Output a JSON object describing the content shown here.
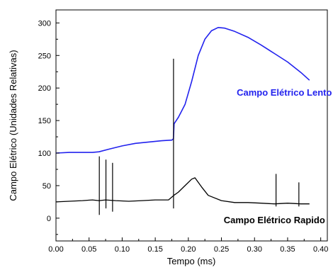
{
  "chart_data": {
    "type": "line",
    "xlabel": "Tempo (ms)",
    "ylabel": "Campo Elétrico (Unidades Relativas)",
    "xlim": [
      0.0,
      0.41
    ],
    "ylim": [
      -35,
      320
    ],
    "xticks": [
      0.0,
      0.05,
      0.1,
      0.15,
      0.2,
      0.25,
      0.3,
      0.35,
      0.4
    ],
    "xtick_labels": [
      "0.00",
      "0.05",
      "0.10",
      "0.15",
      "0.20",
      "0.25",
      "0.30",
      "0.35",
      "0.40"
    ],
    "yticks": [
      0,
      50,
      100,
      150,
      200,
      250,
      300
    ],
    "ytick_labels": [
      "0",
      "50",
      "100",
      "150",
      "200",
      "250",
      "300"
    ],
    "grid": false,
    "series": [
      {
        "name": "Campo Elétrico Lento",
        "color": "#2222ee",
        "x": [
          0.0,
          0.02,
          0.04,
          0.055,
          0.065,
          0.08,
          0.1,
          0.12,
          0.14,
          0.16,
          0.175,
          0.1775,
          0.1785,
          0.185,
          0.195,
          0.205,
          0.215,
          0.225,
          0.235,
          0.245,
          0.255,
          0.27,
          0.29,
          0.31,
          0.33,
          0.35,
          0.37,
          0.383
        ],
        "y": [
          100,
          101,
          101,
          101,
          102,
          106,
          111,
          115,
          117,
          119,
          120,
          122,
          145,
          155,
          175,
          210,
          250,
          275,
          288,
          293,
          292,
          287,
          278,
          266,
          253,
          240,
          224,
          212
        ]
      },
      {
        "name": "Campo Elétrico Rapido",
        "color": "#000000",
        "x": [
          0.0,
          0.02,
          0.04,
          0.055,
          0.065,
          0.075,
          0.09,
          0.11,
          0.13,
          0.15,
          0.17,
          0.178,
          0.185,
          0.195,
          0.205,
          0.21,
          0.22,
          0.23,
          0.25,
          0.27,
          0.29,
          0.31,
          0.33,
          0.35,
          0.37,
          0.383
        ],
        "y": [
          25,
          26,
          27,
          28,
          27,
          28,
          27,
          26,
          27,
          28,
          28,
          35,
          40,
          50,
          60,
          62,
          48,
          35,
          27,
          24,
          24,
          23,
          22,
          23,
          22,
          22
        ],
        "spikes": [
          {
            "x": 0.0655,
            "y_top": 95,
            "y_bottom": 5
          },
          {
            "x": 0.0755,
            "y_top": 90,
            "y_bottom": 15
          },
          {
            "x": 0.0855,
            "y_top": 85,
            "y_bottom": 10
          },
          {
            "x": 0.1776,
            "y_top": 245,
            "y_bottom": 15
          },
          {
            "x": 0.3325,
            "y_top": 68,
            "y_bottom": 18
          },
          {
            "x": 0.367,
            "y_top": 55,
            "y_bottom": 18
          }
        ]
      }
    ],
    "annotations": [
      {
        "text": "Campo Elétrico Lento",
        "color": "#2222ee",
        "x": 0.345,
        "y": 188
      },
      {
        "text": "Campo Elétrico Rapido",
        "color": "#000000",
        "x": 0.33,
        "y": -8
      }
    ]
  }
}
